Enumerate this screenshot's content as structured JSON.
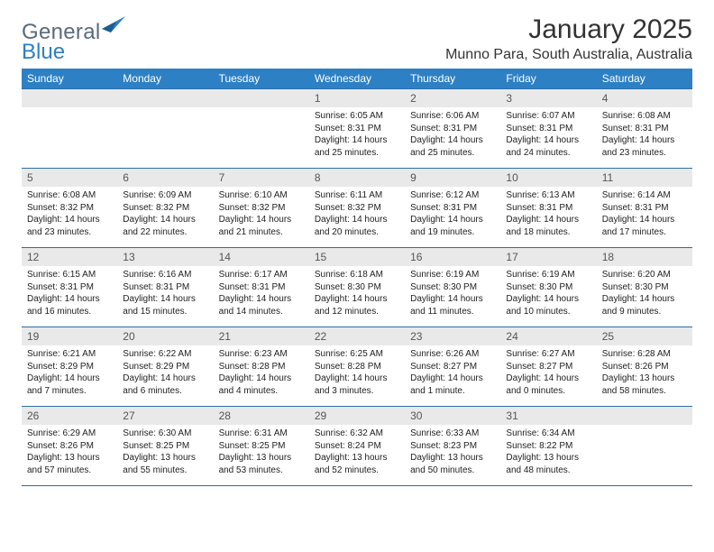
{
  "brand": {
    "word1": "General",
    "word2": "Blue"
  },
  "title": "January 2025",
  "location": "Munno Para, South Australia, Australia",
  "colors": {
    "header_bg": "#2d80c4",
    "header_text": "#ffffff",
    "daynum_bg": "#e9e9e9",
    "row_divider": "#2d6ea8",
    "logo_grey": "#5a6b7a",
    "logo_blue": "#2d80c4"
  },
  "weekdays": [
    "Sunday",
    "Monday",
    "Tuesday",
    "Wednesday",
    "Thursday",
    "Friday",
    "Saturday"
  ],
  "weeks": [
    [
      {
        "empty": true
      },
      {
        "empty": true
      },
      {
        "empty": true
      },
      {
        "day": "1",
        "sunrise": "Sunrise: 6:05 AM",
        "sunset": "Sunset: 8:31 PM",
        "dl1": "Daylight: 14 hours",
        "dl2": "and 25 minutes."
      },
      {
        "day": "2",
        "sunrise": "Sunrise: 6:06 AM",
        "sunset": "Sunset: 8:31 PM",
        "dl1": "Daylight: 14 hours",
        "dl2": "and 25 minutes."
      },
      {
        "day": "3",
        "sunrise": "Sunrise: 6:07 AM",
        "sunset": "Sunset: 8:31 PM",
        "dl1": "Daylight: 14 hours",
        "dl2": "and 24 minutes."
      },
      {
        "day": "4",
        "sunrise": "Sunrise: 6:08 AM",
        "sunset": "Sunset: 8:31 PM",
        "dl1": "Daylight: 14 hours",
        "dl2": "and 23 minutes."
      }
    ],
    [
      {
        "day": "5",
        "sunrise": "Sunrise: 6:08 AM",
        "sunset": "Sunset: 8:32 PM",
        "dl1": "Daylight: 14 hours",
        "dl2": "and 23 minutes."
      },
      {
        "day": "6",
        "sunrise": "Sunrise: 6:09 AM",
        "sunset": "Sunset: 8:32 PM",
        "dl1": "Daylight: 14 hours",
        "dl2": "and 22 minutes."
      },
      {
        "day": "7",
        "sunrise": "Sunrise: 6:10 AM",
        "sunset": "Sunset: 8:32 PM",
        "dl1": "Daylight: 14 hours",
        "dl2": "and 21 minutes."
      },
      {
        "day": "8",
        "sunrise": "Sunrise: 6:11 AM",
        "sunset": "Sunset: 8:32 PM",
        "dl1": "Daylight: 14 hours",
        "dl2": "and 20 minutes."
      },
      {
        "day": "9",
        "sunrise": "Sunrise: 6:12 AM",
        "sunset": "Sunset: 8:31 PM",
        "dl1": "Daylight: 14 hours",
        "dl2": "and 19 minutes."
      },
      {
        "day": "10",
        "sunrise": "Sunrise: 6:13 AM",
        "sunset": "Sunset: 8:31 PM",
        "dl1": "Daylight: 14 hours",
        "dl2": "and 18 minutes."
      },
      {
        "day": "11",
        "sunrise": "Sunrise: 6:14 AM",
        "sunset": "Sunset: 8:31 PM",
        "dl1": "Daylight: 14 hours",
        "dl2": "and 17 minutes."
      }
    ],
    [
      {
        "day": "12",
        "sunrise": "Sunrise: 6:15 AM",
        "sunset": "Sunset: 8:31 PM",
        "dl1": "Daylight: 14 hours",
        "dl2": "and 16 minutes."
      },
      {
        "day": "13",
        "sunrise": "Sunrise: 6:16 AM",
        "sunset": "Sunset: 8:31 PM",
        "dl1": "Daylight: 14 hours",
        "dl2": "and 15 minutes."
      },
      {
        "day": "14",
        "sunrise": "Sunrise: 6:17 AM",
        "sunset": "Sunset: 8:31 PM",
        "dl1": "Daylight: 14 hours",
        "dl2": "and 14 minutes."
      },
      {
        "day": "15",
        "sunrise": "Sunrise: 6:18 AM",
        "sunset": "Sunset: 8:30 PM",
        "dl1": "Daylight: 14 hours",
        "dl2": "and 12 minutes."
      },
      {
        "day": "16",
        "sunrise": "Sunrise: 6:19 AM",
        "sunset": "Sunset: 8:30 PM",
        "dl1": "Daylight: 14 hours",
        "dl2": "and 11 minutes."
      },
      {
        "day": "17",
        "sunrise": "Sunrise: 6:19 AM",
        "sunset": "Sunset: 8:30 PM",
        "dl1": "Daylight: 14 hours",
        "dl2": "and 10 minutes."
      },
      {
        "day": "18",
        "sunrise": "Sunrise: 6:20 AM",
        "sunset": "Sunset: 8:30 PM",
        "dl1": "Daylight: 14 hours",
        "dl2": "and 9 minutes."
      }
    ],
    [
      {
        "day": "19",
        "sunrise": "Sunrise: 6:21 AM",
        "sunset": "Sunset: 8:29 PM",
        "dl1": "Daylight: 14 hours",
        "dl2": "and 7 minutes."
      },
      {
        "day": "20",
        "sunrise": "Sunrise: 6:22 AM",
        "sunset": "Sunset: 8:29 PM",
        "dl1": "Daylight: 14 hours",
        "dl2": "and 6 minutes."
      },
      {
        "day": "21",
        "sunrise": "Sunrise: 6:23 AM",
        "sunset": "Sunset: 8:28 PM",
        "dl1": "Daylight: 14 hours",
        "dl2": "and 4 minutes."
      },
      {
        "day": "22",
        "sunrise": "Sunrise: 6:25 AM",
        "sunset": "Sunset: 8:28 PM",
        "dl1": "Daylight: 14 hours",
        "dl2": "and 3 minutes."
      },
      {
        "day": "23",
        "sunrise": "Sunrise: 6:26 AM",
        "sunset": "Sunset: 8:27 PM",
        "dl1": "Daylight: 14 hours",
        "dl2": "and 1 minute."
      },
      {
        "day": "24",
        "sunrise": "Sunrise: 6:27 AM",
        "sunset": "Sunset: 8:27 PM",
        "dl1": "Daylight: 14 hours",
        "dl2": "and 0 minutes."
      },
      {
        "day": "25",
        "sunrise": "Sunrise: 6:28 AM",
        "sunset": "Sunset: 8:26 PM",
        "dl1": "Daylight: 13 hours",
        "dl2": "and 58 minutes."
      }
    ],
    [
      {
        "day": "26",
        "sunrise": "Sunrise: 6:29 AM",
        "sunset": "Sunset: 8:26 PM",
        "dl1": "Daylight: 13 hours",
        "dl2": "and 57 minutes."
      },
      {
        "day": "27",
        "sunrise": "Sunrise: 6:30 AM",
        "sunset": "Sunset: 8:25 PM",
        "dl1": "Daylight: 13 hours",
        "dl2": "and 55 minutes."
      },
      {
        "day": "28",
        "sunrise": "Sunrise: 6:31 AM",
        "sunset": "Sunset: 8:25 PM",
        "dl1": "Daylight: 13 hours",
        "dl2": "and 53 minutes."
      },
      {
        "day": "29",
        "sunrise": "Sunrise: 6:32 AM",
        "sunset": "Sunset: 8:24 PM",
        "dl1": "Daylight: 13 hours",
        "dl2": "and 52 minutes."
      },
      {
        "day": "30",
        "sunrise": "Sunrise: 6:33 AM",
        "sunset": "Sunset: 8:23 PM",
        "dl1": "Daylight: 13 hours",
        "dl2": "and 50 minutes."
      },
      {
        "day": "31",
        "sunrise": "Sunrise: 6:34 AM",
        "sunset": "Sunset: 8:22 PM",
        "dl1": "Daylight: 13 hours",
        "dl2": "and 48 minutes."
      },
      {
        "empty": true
      }
    ]
  ]
}
